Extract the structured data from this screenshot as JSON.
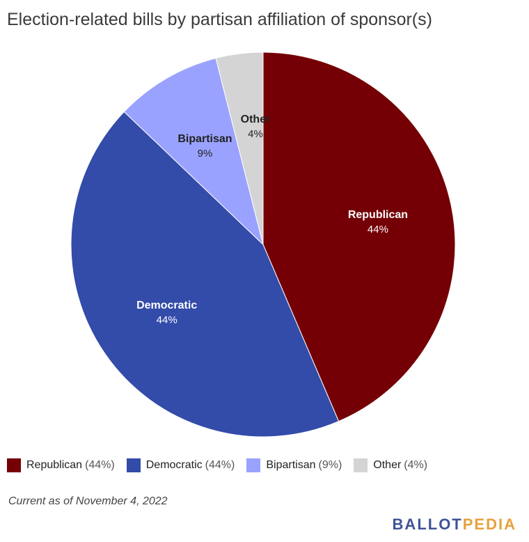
{
  "chart_data": {
    "type": "pie",
    "title": "Election-related bills by partisan affiliation of sponsor(s)",
    "slices": [
      {
        "label": "Republican",
        "value": 44,
        "pct_label": "44%",
        "legend_pct": "(44%)",
        "color": "#740005",
        "label_color": "#ffffff"
      },
      {
        "label": "Democratic",
        "value": 44,
        "pct_label": "44%",
        "legend_pct": "(44%)",
        "color": "#334ba9",
        "label_color": "#ffffff"
      },
      {
        "label": "Bipartisan",
        "value": 9,
        "pct_label": "9%",
        "legend_pct": "(9%)",
        "color": "#9aa2ff",
        "label_color": "#222222"
      },
      {
        "label": "Other",
        "value": 4,
        "pct_label": "4%",
        "legend_pct": "(4%)",
        "color": "#d4d4d4",
        "label_color": "#222222"
      }
    ],
    "start_angle": "top",
    "direction": "clockwise",
    "legend_position": "bottom"
  },
  "footnote": "Current as of November 4, 2022",
  "logo": {
    "part1": "BALLOT",
    "part2": "PEDIA"
  }
}
